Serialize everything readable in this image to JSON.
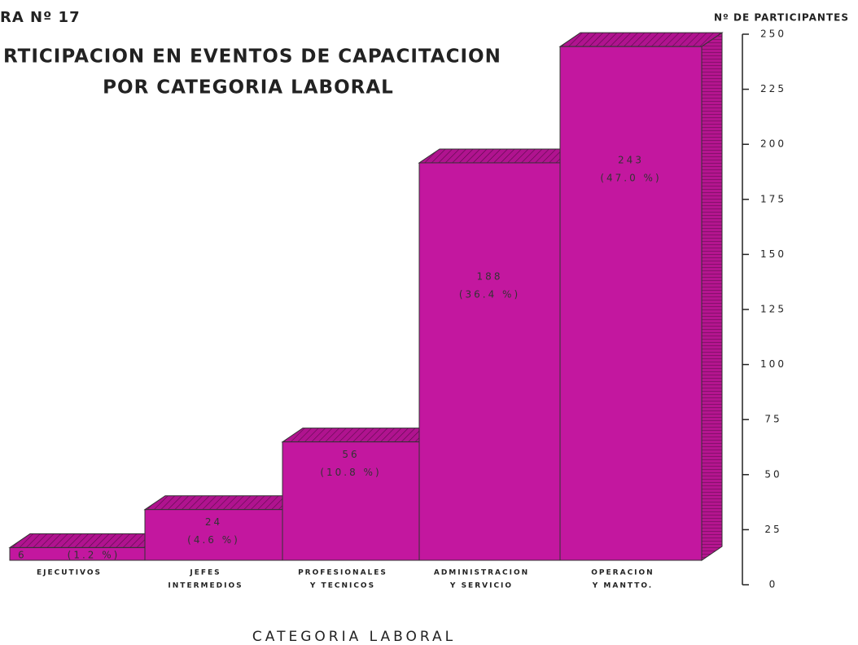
{
  "chart_data": {
    "type": "bar3d",
    "figure_label": "RA Nº 17",
    "title": [
      "RTICIPACION EN EVENTOS DE CAPACITACION",
      "POR CATEGORIA LABORAL"
    ],
    "y_label": "Nº DE PARTICIPANTES",
    "x_label": "CATEGORIA LABORAL",
    "categories": [
      [
        "EJECUTIVOS"
      ],
      [
        "JEFES",
        "INTERMEDIOS"
      ],
      [
        "PROFESIONALES",
        "Y TECNICOS"
      ],
      [
        "ADMINISTRACION",
        "Y SERVICIO"
      ],
      [
        "OPERACION",
        "Y MANTTO."
      ]
    ],
    "values": [
      6,
      24,
      56,
      188,
      243
    ],
    "share_labels": [
      "(1.2 %)",
      "(4.6 %)",
      "(10.8 %)",
      "(36.4 %)",
      "(47.0 %)"
    ],
    "color": "#c3179f",
    "ylim": [
      0,
      250
    ],
    "yticks": [
      0,
      25,
      50,
      75,
      100,
      125,
      150,
      175,
      200,
      225,
      250
    ]
  }
}
